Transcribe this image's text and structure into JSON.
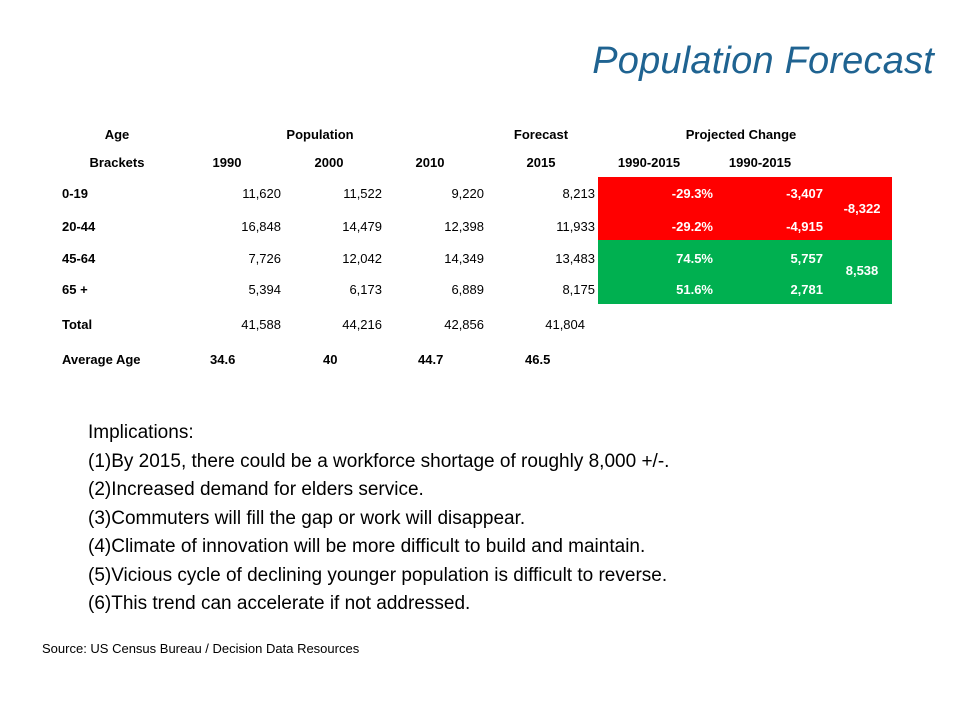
{
  "title": "Population Forecast",
  "table": {
    "header_row1": {
      "age": "Age",
      "population": "Population",
      "forecast": "Forecast",
      "projected_change": "Projected Change"
    },
    "header_row2": {
      "brackets": "Brackets",
      "y1990": "1990",
      "y2000": "2000",
      "y2010": "2010",
      "y2015": "2015",
      "pct_range": "1990-2015",
      "abs_range": "1990-2015"
    },
    "rows": [
      {
        "bracket": "0-19",
        "y1990": "11,620",
        "y2000": "11,522",
        "y2010": "9,220",
        "y2015": "8,213",
        "pct": "-29.3%",
        "abs": "-3,407"
      },
      {
        "bracket": "20-44",
        "y1990": "16,848",
        "y2000": "14,479",
        "y2010": "12,398",
        "y2015": "11,933",
        "pct": "-29.2%",
        "abs": "-4,915"
      },
      {
        "bracket": "45-64",
        "y1990": "7,726",
        "y2000": "12,042",
        "y2010": "14,349",
        "y2015": "13,483",
        "pct": "74.5%",
        "abs": "5,757"
      },
      {
        "bracket": "65 +",
        "y1990": "5,394",
        "y2000": "6,173",
        "y2010": "6,889",
        "y2015": "8,175",
        "pct": "51.6%",
        "abs": "2,781"
      }
    ],
    "group_totals": {
      "young": "-8,322",
      "old": "8,538"
    },
    "total_row": {
      "label": "Total",
      "y1990": "41,588",
      "y2000": "44,216",
      "y2010": "42,856",
      "y2015": "41,804"
    },
    "avg_age_row": {
      "label": "Average Age",
      "y1990": "34.6",
      "y2000": "40",
      "y2010": "44.7",
      "y2015": "46.5"
    },
    "colors": {
      "decline": "#ff0000",
      "growth": "#00b050",
      "title": "#1f6391"
    }
  },
  "implications": [
    "Implications:",
    "(1)By 2015, there could be a workforce shortage of roughly 8,000 +/-.",
    "(2)Increased demand for elders service.",
    "(3)Commuters will fill the gap or work will disappear.",
    "(4)Climate of innovation will be more difficult to build and maintain.",
    "(5)Vicious cycle of declining younger population is difficult to reverse.",
    "(6)This trend can accelerate if not addressed."
  ],
  "source": "Source: US Census Bureau / Decision Data Resources"
}
